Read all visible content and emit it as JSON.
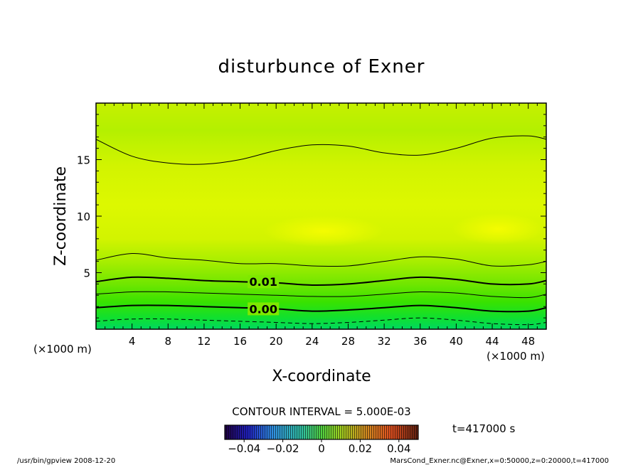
{
  "chart_data": {
    "type": "contour",
    "title": "disturbunce of Exner",
    "xlabel": "X-coordinate",
    "ylabel": "Z-coordinate",
    "x_unit": "(×1000 m)",
    "y_unit": "(×1000 m)",
    "xlim": [
      0,
      50
    ],
    "ylim": [
      0,
      20
    ],
    "x_ticks": [
      4,
      8,
      12,
      16,
      20,
      24,
      28,
      32,
      36,
      40,
      44,
      48
    ],
    "y_ticks": [
      5,
      10,
      15
    ],
    "contour_interval_text": "CONTOUR INTERVAL = 5.000E-03",
    "contour_interval": 0.005,
    "contour_labels": [
      {
        "text": "0.01",
        "value": 0.01,
        "x": 17,
        "z": 4.2
      },
      {
        "text": "0.00",
        "value": 0.0,
        "x": 17,
        "z": 1.8
      }
    ],
    "contours": [
      {
        "value": 0.015,
        "style": "thin",
        "points": [
          [
            0,
            16.8
          ],
          [
            4,
            15.3
          ],
          [
            8,
            14.7
          ],
          [
            12,
            14.6
          ],
          [
            16,
            15
          ],
          [
            20,
            15.8
          ],
          [
            24,
            16.3
          ],
          [
            28,
            16.2
          ],
          [
            32,
            15.6
          ],
          [
            36,
            15.4
          ],
          [
            40,
            16
          ],
          [
            44,
            16.9
          ],
          [
            48,
            17.1
          ],
          [
            50,
            16.8
          ]
        ]
      },
      {
        "value": 0.015,
        "style": "thin",
        "points": [
          [
            0,
            6.1
          ],
          [
            4,
            6.7
          ],
          [
            8,
            6.3
          ],
          [
            12,
            6.1
          ],
          [
            16,
            5.8
          ],
          [
            20,
            5.8
          ],
          [
            24,
            5.6
          ],
          [
            28,
            5.6
          ],
          [
            32,
            6
          ],
          [
            36,
            6.4
          ],
          [
            40,
            6.2
          ],
          [
            44,
            5.6
          ],
          [
            48,
            5.7
          ],
          [
            50,
            6
          ]
        ]
      },
      {
        "value": 0.01,
        "style": "thick",
        "points": [
          [
            0,
            4.2
          ],
          [
            4,
            4.6
          ],
          [
            8,
            4.5
          ],
          [
            12,
            4.3
          ],
          [
            16,
            4.2
          ],
          [
            20,
            4.1
          ],
          [
            24,
            3.9
          ],
          [
            28,
            4
          ],
          [
            32,
            4.3
          ],
          [
            36,
            4.6
          ],
          [
            40,
            4.4
          ],
          [
            44,
            4
          ],
          [
            48,
            4
          ],
          [
            50,
            4.3
          ]
        ]
      },
      {
        "value": 0.005,
        "style": "thin",
        "points": [
          [
            0,
            3.1
          ],
          [
            4,
            3.3
          ],
          [
            8,
            3.3
          ],
          [
            12,
            3.2
          ],
          [
            16,
            3.1
          ],
          [
            20,
            3
          ],
          [
            24,
            2.9
          ],
          [
            28,
            2.9
          ],
          [
            32,
            3.1
          ],
          [
            36,
            3.3
          ],
          [
            40,
            3.2
          ],
          [
            44,
            2.9
          ],
          [
            48,
            2.8
          ],
          [
            50,
            3.1
          ]
        ]
      },
      {
        "value": 0.0,
        "style": "thick",
        "points": [
          [
            0,
            1.9
          ],
          [
            4,
            2.1
          ],
          [
            8,
            2.1
          ],
          [
            12,
            2
          ],
          [
            16,
            1.9
          ],
          [
            20,
            1.8
          ],
          [
            24,
            1.6
          ],
          [
            28,
            1.7
          ],
          [
            32,
            1.9
          ],
          [
            36,
            2.1
          ],
          [
            40,
            1.9
          ],
          [
            44,
            1.6
          ],
          [
            48,
            1.6
          ],
          [
            50,
            1.9
          ]
        ]
      },
      {
        "value": -0.005,
        "style": "dashed",
        "points": [
          [
            0,
            0.7
          ],
          [
            4,
            0.9
          ],
          [
            8,
            0.9
          ],
          [
            12,
            0.8
          ],
          [
            16,
            0.7
          ],
          [
            20,
            0.6
          ],
          [
            24,
            0.5
          ],
          [
            28,
            0.6
          ],
          [
            32,
            0.8
          ],
          [
            36,
            1
          ],
          [
            40,
            0.8
          ],
          [
            44,
            0.5
          ],
          [
            48,
            0.4
          ],
          [
            50,
            0.6
          ]
        ]
      }
    ],
    "colorbar": {
      "ticks": [
        "−0.04",
        "−0.02",
        "0",
        "0.02",
        "0.04"
      ],
      "tick_values": [
        -0.04,
        -0.02,
        0,
        0.02,
        0.04
      ],
      "range": [
        -0.05,
        0.05
      ]
    },
    "time_label": "t=417000 s"
  },
  "footer": {
    "left": "/usr/bin/gpview   2008-12-20",
    "right": "MarsCond_Exner.nc@Exner,x=0:50000,z=0:20000,t=417000"
  }
}
